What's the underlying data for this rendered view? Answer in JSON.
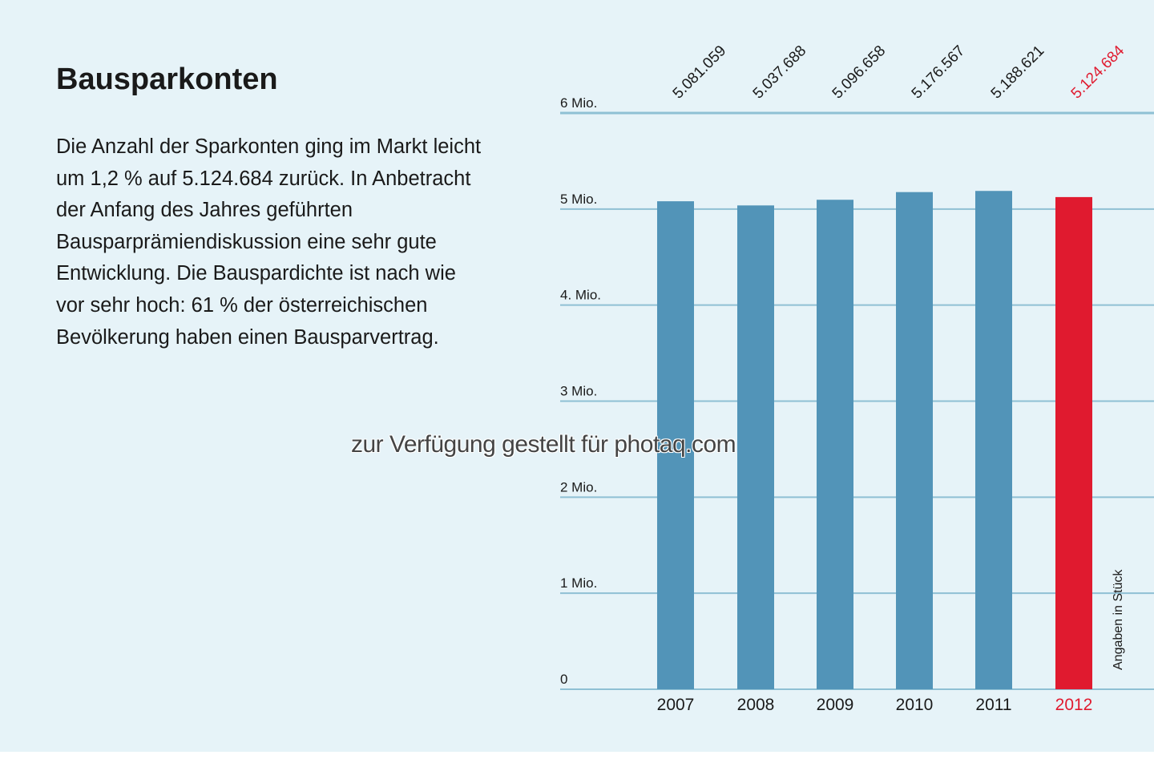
{
  "heading": "Bausparkonten",
  "paragraph": "Die Anzahl der Sparkonten ging im Markt leicht um 1,2 % auf 5.124.684 zurück. In Anbetracht der Anfang des Jahres geführten Bausparprämiendiskussion eine sehr gute Entwicklung. Die Bauspardichte ist nach wie vor sehr hoch: 61 % der österreichischen Bevölkerung haben einen Bausparvertrag.",
  "watermark": "zur Verfügung gestellt für photaq.com",
  "colors": {
    "bar": "#5294b8",
    "highlight": "#e01a2f",
    "grid": "#8fc0d4",
    "text": "#1a1a1a"
  },
  "chart_data": {
    "type": "bar",
    "title": "Bausparkonten",
    "categories": [
      "2007",
      "2008",
      "2009",
      "2010",
      "2011",
      "2012"
    ],
    "values": [
      5081059,
      5037688,
      5096658,
      5176567,
      5188621,
      5124684
    ],
    "value_labels": [
      "5.081.059",
      "5.037.688",
      "5.096.658",
      "5.176.567",
      "5.188.621",
      "5.124.684"
    ],
    "highlight_index": 5,
    "ylim": [
      0,
      6000000
    ],
    "yticks": [
      0,
      1000000,
      2000000,
      3000000,
      4000000,
      5000000,
      6000000
    ],
    "ytick_labels": [
      "0",
      "1 Mio.",
      "2 Mio.",
      "3 Mio.",
      "4. Mio.",
      "5 Mio.",
      "6 Mio."
    ],
    "ylabel": "Angaben in Stück",
    "xlabel": "",
    "grid": true
  }
}
